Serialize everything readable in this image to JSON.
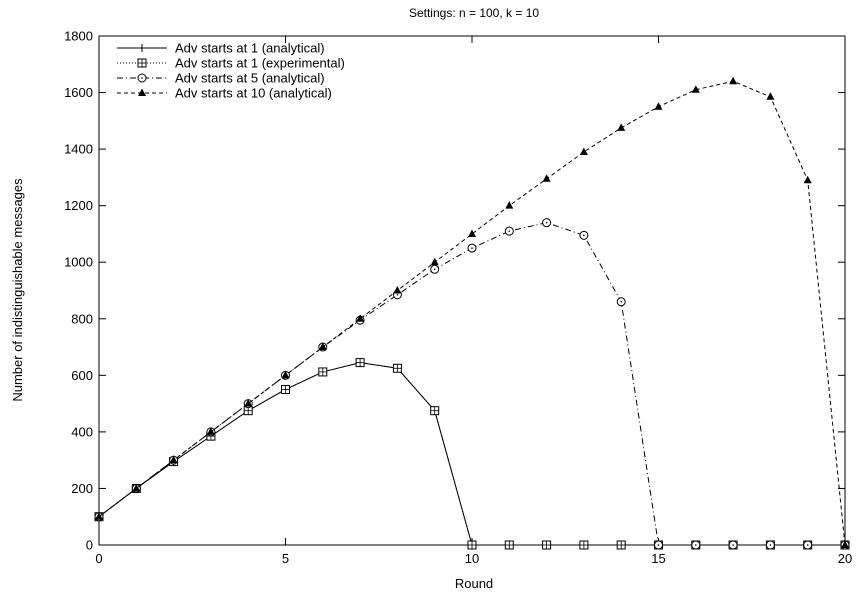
{
  "chart_data": {
    "type": "line",
    "title": "Settings: n = 100, k = 10",
    "xlabel": "Round",
    "ylabel": "Number of indistinguishable messages",
    "xlim": [
      0,
      20
    ],
    "ylim": [
      0,
      1800
    ],
    "xticks": [
      0,
      5,
      10,
      15,
      20
    ],
    "yticks": [
      0,
      200,
      400,
      600,
      800,
      1000,
      1200,
      1400,
      1600,
      1800
    ],
    "grid": false,
    "legend_position": "top-left",
    "series": [
      {
        "name": "Adv starts at 1 (analytical)",
        "marker": "plus",
        "line": "solid",
        "x": [
          0,
          1,
          2,
          3,
          4,
          5,
          6,
          7,
          8,
          9,
          10,
          11,
          12,
          13,
          14,
          15,
          16,
          17,
          18,
          19,
          20
        ],
        "y": [
          100,
          200,
          295,
          385,
          475,
          550,
          612,
          645,
          625,
          475,
          0,
          0,
          0,
          0,
          0,
          0,
          0,
          0,
          0,
          0,
          0
        ]
      },
      {
        "name": "Adv starts at 1 (experimental)",
        "marker": "square",
        "line": "dotted",
        "x": [
          0,
          1,
          2,
          3,
          4,
          5,
          6,
          7,
          8,
          9,
          10,
          11,
          12,
          13,
          14,
          15,
          16,
          17,
          18,
          19,
          20
        ],
        "y": [
          100,
          200,
          295,
          385,
          475,
          550,
          612,
          645,
          625,
          475,
          0,
          0,
          0,
          0,
          0,
          0,
          0,
          0,
          0,
          0,
          0
        ]
      },
      {
        "name": "Adv starts at 5 (analytical)",
        "marker": "circle",
        "line": "dashdot",
        "x": [
          0,
          1,
          2,
          3,
          4,
          5,
          6,
          7,
          8,
          9,
          10,
          11,
          12,
          13,
          14,
          15,
          16,
          17,
          18,
          19,
          20
        ],
        "y": [
          100,
          200,
          300,
          400,
          500,
          600,
          700,
          795,
          885,
          975,
          1050,
          1110,
          1140,
          1095,
          860,
          0,
          0,
          0,
          0,
          0,
          0
        ]
      },
      {
        "name": "Adv starts at 10 (analytical)",
        "marker": "triangle",
        "line": "dashed",
        "x": [
          0,
          1,
          2,
          3,
          4,
          5,
          6,
          7,
          8,
          9,
          10,
          11,
          12,
          13,
          14,
          15,
          16,
          17,
          18,
          19,
          20
        ],
        "y": [
          100,
          200,
          300,
          400,
          500,
          600,
          700,
          800,
          900,
          1000,
          1100,
          1200,
          1295,
          1390,
          1475,
          1550,
          1610,
          1640,
          1585,
          1290,
          0
        ]
      }
    ]
  }
}
